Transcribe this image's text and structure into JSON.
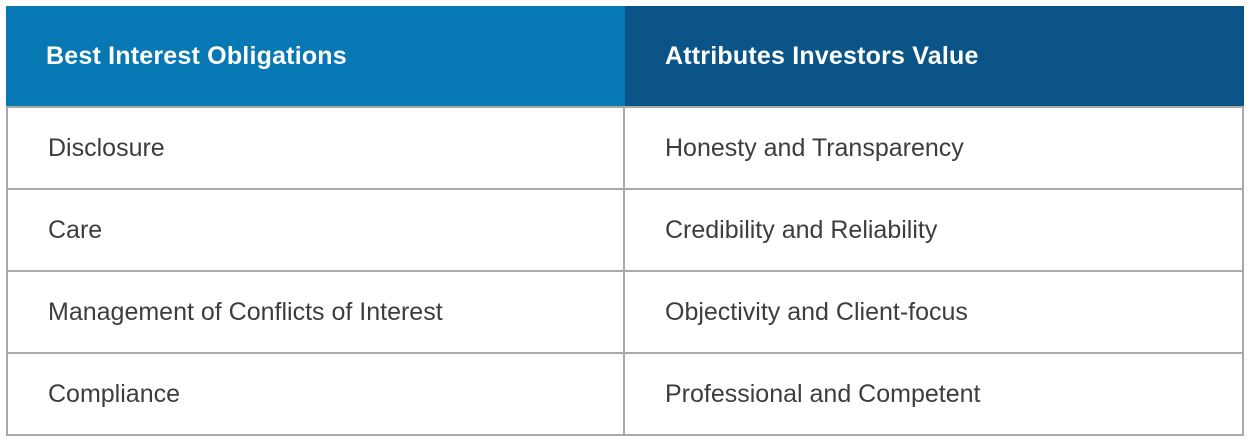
{
  "table": {
    "headers": [
      {
        "label": "Best Interest Obligations"
      },
      {
        "label": "Attributes Investors Value"
      }
    ],
    "rows": [
      {
        "obligation": "Disclosure",
        "attribute": "Honesty and Transparency"
      },
      {
        "obligation": "Care",
        "attribute": "Credibility and Reliability"
      },
      {
        "obligation": "Management of Conflicts of Interest",
        "attribute": "Objectivity and Client-focus"
      },
      {
        "obligation": "Compliance",
        "attribute": "Professional and Competent"
      }
    ],
    "colors": {
      "header_left_bg": "#0878b5",
      "header_right_bg": "#0b5488",
      "header_text": "#ffffff",
      "body_text": "#3d3d3d",
      "border": "#a9a9a9",
      "body_bg": "#ffffff"
    }
  }
}
